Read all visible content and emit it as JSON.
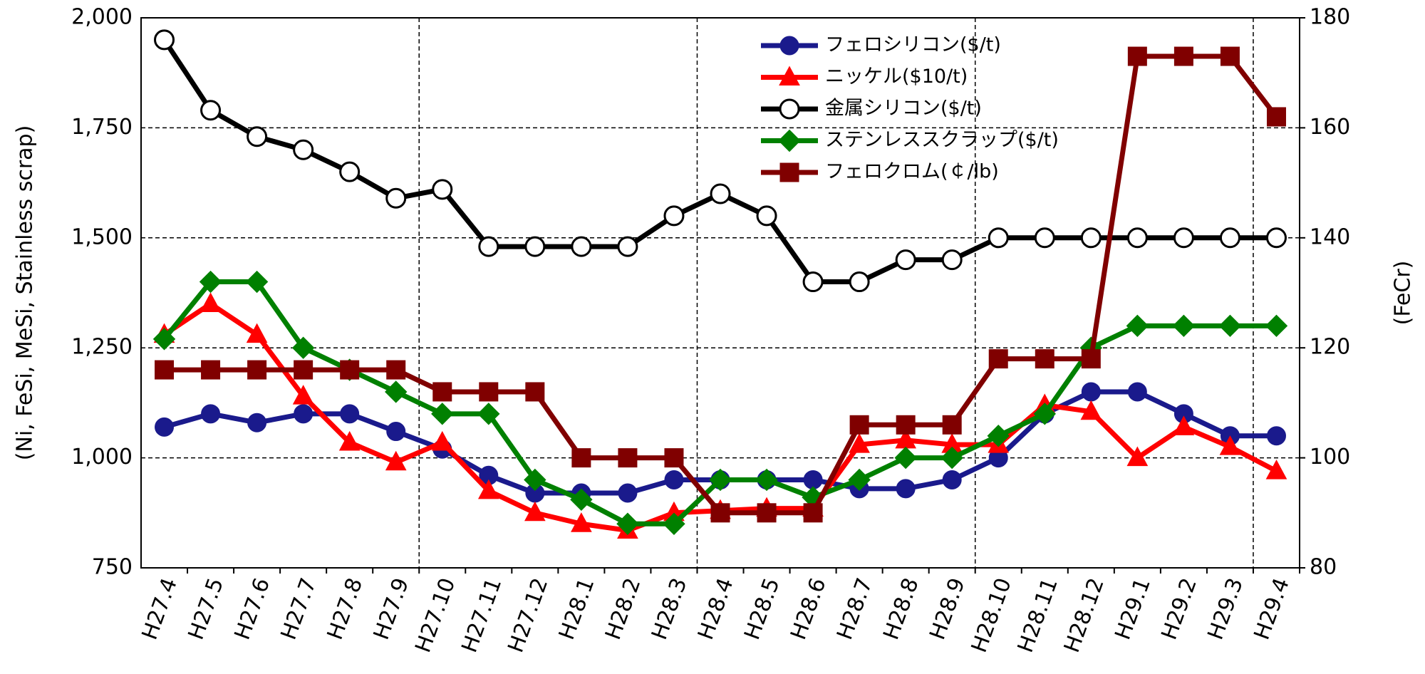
{
  "chart_data": {
    "type": "line",
    "categories": [
      "H27.4",
      "H27.5",
      "H27.6",
      "H27.7",
      "H27.8",
      "H27.9",
      "H27.10",
      "H27.11",
      "H27.12",
      "H28.1",
      "H28.2",
      "H28.3",
      "H28.4",
      "H28.5",
      "H28.6",
      "H28.7",
      "H28.8",
      "H28.9",
      "H28.10",
      "H28.11",
      "H28.12",
      "H29.1",
      "H29.2",
      "H29.3",
      "H29.4"
    ],
    "series": [
      {
        "name": "フェロシリコン($/t)",
        "color": "#1a1a8c",
        "marker": "circle",
        "values": [
          1070,
          1100,
          1080,
          1100,
          1100,
          1060,
          1020,
          960,
          920,
          920,
          920,
          950,
          950,
          950,
          950,
          930,
          930,
          950,
          1000,
          1100,
          1150,
          1150,
          1100,
          1050,
          1050
        ]
      },
      {
        "name": "ニッケル($10/t)",
        "color": "#ff0000",
        "marker": "triangle",
        "values": [
          1280,
          1350,
          1280,
          1140,
          1035,
          990,
          1035,
          925,
          875,
          850,
          835,
          875,
          880,
          885,
          885,
          1030,
          1040,
          1030,
          1030,
          1120,
          1105,
          1000,
          1070,
          1025,
          970
        ]
      },
      {
        "name": "金属シリコン($/t)",
        "color": "#000000",
        "marker": "open-circle",
        "values": [
          1950,
          1790,
          1730,
          1700,
          1650,
          1590,
          1610,
          1480,
          1480,
          1480,
          1480,
          1550,
          1600,
          1550,
          1400,
          1400,
          1450,
          1450,
          1500,
          1500,
          1500,
          1500,
          1500,
          1500,
          1500
        ]
      },
      {
        "name": "ステンレススクラップ($/t)",
        "color": "#008000",
        "marker": "diamond",
        "values": [
          1270,
          1400,
          1400,
          1250,
          1200,
          1150,
          1100,
          1100,
          950,
          905,
          850,
          850,
          950,
          950,
          910,
          950,
          1000,
          1000,
          1050,
          1100,
          1250,
          1300,
          1300,
          1300,
          1300
        ]
      },
      {
        "name": "フェロクロム(￠/lb)",
        "color": "#800000",
        "marker": "square",
        "axis": "y2",
        "values": [
          116,
          116,
          116,
          116,
          116,
          116,
          112,
          112,
          112,
          100,
          100,
          100,
          90,
          90,
          90,
          106,
          106,
          106,
          118,
          118,
          118,
          173,
          173,
          173,
          162
        ]
      }
    ],
    "ylabel": "(Ni, FeSi, MeSi, Stainless scrap)",
    "y2label": "(FeCr)",
    "ylim": [
      750,
      2000
    ],
    "yticks": [
      {
        "value": 750,
        "label": "750"
      },
      {
        "value": 1000,
        "label": "1,000"
      },
      {
        "value": 1250,
        "label": "1,250"
      },
      {
        "value": 1500,
        "label": "1,500"
      },
      {
        "value": 1750,
        "label": "1,750"
      },
      {
        "value": 2000,
        "label": "2,000"
      }
    ],
    "y2lim": [
      80,
      180
    ],
    "y2ticks": [
      80,
      100,
      120,
      140,
      160,
      180
    ],
    "grid": true,
    "legend": "top"
  }
}
